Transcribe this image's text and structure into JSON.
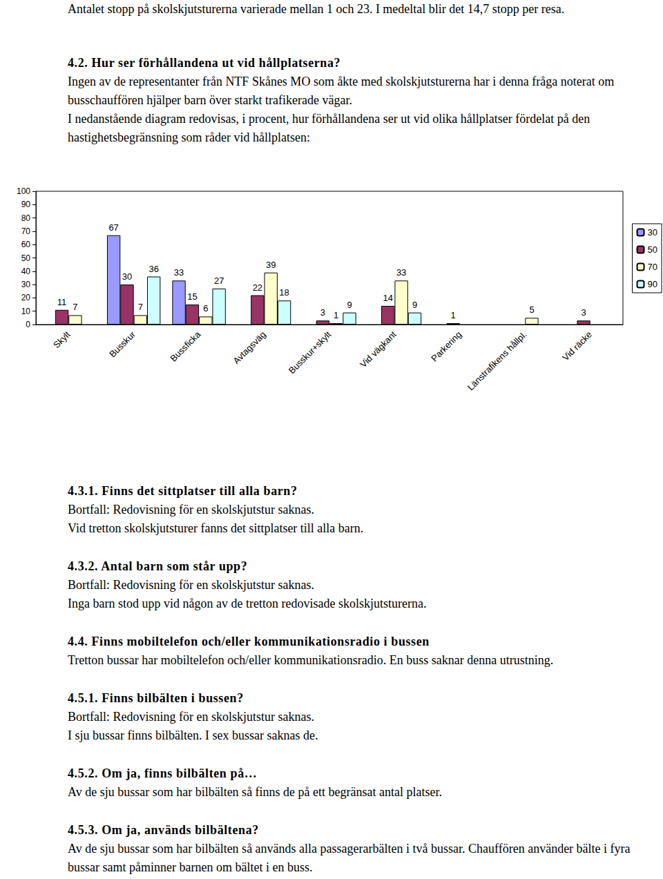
{
  "intro": "Antalet stopp på skolskjutsturerna varierade mellan 1 och 23. I medeltal blir det 14,7 stopp per resa.",
  "section_4_2": {
    "heading": "4.2. Hur ser förhållandena ut vid hållplatserna?",
    "paragraphs": [
      "Ingen av de representanter från NTF Skånes MO som åkte med skolskjutsturerna har i denna fråga noterat om busschauffören hjälper barn över starkt trafikerade vägar.",
      "I nedanstående diagram redovisas, i procent, hur förhållandena ser ut vid olika hållplatser fördelat på den hastighetsbegränsning som råder vid hållplatsen:"
    ]
  },
  "chart_data": {
    "type": "bar",
    "categories": [
      "Skylt",
      "Busskur",
      "Bussficka",
      "Avtagsväg",
      "Busskur+skylt",
      "Vid vägkant",
      "Parkering",
      "Länstrafikens hållpl.",
      "Vid räcke"
    ],
    "series": [
      {
        "name": "30",
        "color": "#9999ff",
        "values": [
          null,
          67,
          33,
          null,
          null,
          null,
          null,
          null,
          null
        ]
      },
      {
        "name": "50",
        "color": "#993366",
        "values": [
          11,
          30,
          15,
          22,
          3,
          14,
          1,
          null,
          3
        ]
      },
      {
        "name": "70",
        "color": "#ffffcc",
        "values": [
          7,
          7,
          6,
          39,
          1,
          33,
          null,
          5,
          null
        ]
      },
      {
        "name": "90",
        "color": "#ccffff",
        "values": [
          null,
          36,
          27,
          18,
          9,
          9,
          null,
          null,
          null
        ]
      }
    ],
    "ylim": [
      0,
      100
    ],
    "yticks": [
      0,
      10,
      20,
      30,
      40,
      50,
      60,
      70,
      80,
      90,
      100
    ],
    "grid": false,
    "legend": "right",
    "data_labels": true
  },
  "sections": [
    {
      "heading": "4.3.1. Finns det sittplatser till alla barn?",
      "lines": [
        "Bortfall: Redovisning för en skolskjutstur saknas.",
        "Vid tretton skolskjutsturer fanns det sittplatser till alla barn."
      ]
    },
    {
      "heading": "4.3.2. Antal barn som står upp?",
      "lines": [
        "Bortfall: Redovisning för en skolskjutstur saknas.",
        "Inga barn stod upp vid någon av de tretton redovisade skolskjutsturerna."
      ]
    },
    {
      "heading": "4.4. Finns mobiltelefon och/eller kommunikationsradio i bussen",
      "lines": [
        "Tretton bussar har mobiltelefon och/eller kommunikationsradio. En buss saknar denna utrustning."
      ]
    },
    {
      "heading": "4.5.1. Finns bilbälten i bussen?",
      "lines": [
        "Bortfall: Redovisning för en skolskjutstur saknas.",
        "I sju bussar finns bilbälten. I sex bussar saknas de."
      ]
    },
    {
      "heading": "4.5.2. Om ja, finns bilbälten på…",
      "lines": [
        "Av de sju bussar som har bilbälten så finns de på ett begränsat antal platser."
      ]
    },
    {
      "heading": "4.5.3. Om ja, används bilbältena?",
      "lines": [
        "Av de sju bussar som har bilbälten så används alla passagerarbälten i två bussar. Chauffören använder bälte i fyra bussar samt påminner barnen om bältet i en buss."
      ]
    }
  ]
}
